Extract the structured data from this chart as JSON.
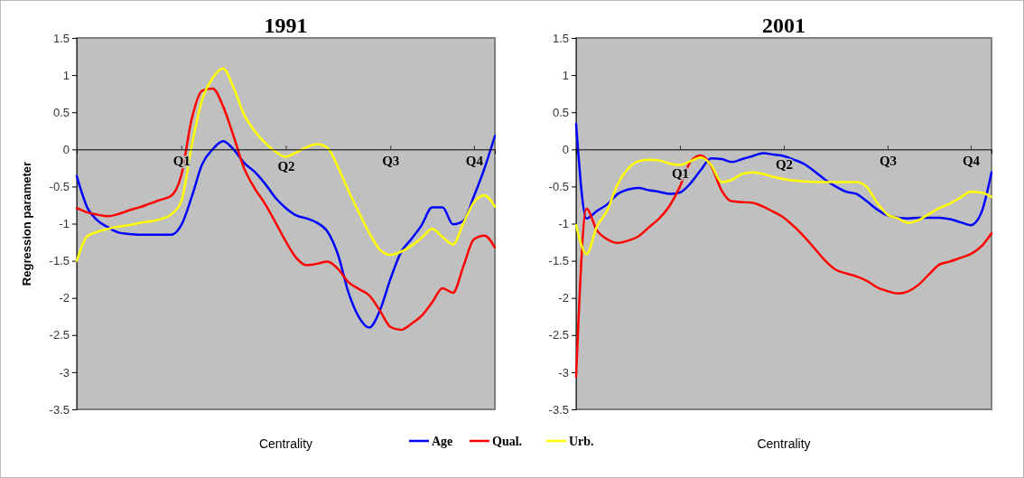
{
  "chart_data": [
    {
      "type": "line",
      "title": "1991",
      "xlabel": "Centrality",
      "ylabel": "Regression parameter",
      "categories": [
        null,
        null,
        null,
        null,
        null,
        null,
        null,
        null,
        null,
        null,
        "Q1",
        null,
        null,
        null,
        null,
        null,
        null,
        null,
        null,
        null,
        "Q2",
        null,
        null,
        null,
        null,
        null,
        null,
        null,
        null,
        null,
        "Q3",
        null,
        null,
        null,
        null,
        null,
        null,
        null,
        "Q4",
        null,
        null
      ],
      "ylim": [
        -3.5,
        1.5
      ],
      "yticks": [
        -3.5,
        -3,
        -2.5,
        -2,
        -1.5,
        -1,
        -0.5,
        0,
        0.5,
        1,
        1.5
      ],
      "legend": "bottom",
      "grid": false,
      "marker": "none",
      "line_style": "solid",
      "series": [
        {
          "name": "Age",
          "color": "#0000ff",
          "values": [
            -0.36,
            -0.78,
            -0.96,
            -1.05,
            -1.12,
            -1.14,
            -1.15,
            -1.15,
            -1.15,
            -1.15,
            -1.02,
            -0.64,
            -0.2,
            0,
            0.11,
            0,
            -0.18,
            -0.3,
            -0.46,
            -0.65,
            -0.79,
            -0.89,
            -0.93,
            -0.99,
            -1.11,
            -1.42,
            -1.93,
            -2.26,
            -2.4,
            -2.17,
            -1.75,
            -1.39,
            -1.21,
            -1.02,
            -0.78,
            -0.78,
            -1.01,
            -0.96,
            -0.63,
            -0.26,
            0.18
          ]
        },
        {
          "name": "Qual.",
          "color": "#ff0000",
          "values": [
            -0.79,
            -0.85,
            -0.88,
            -0.9,
            -0.87,
            -0.82,
            -0.78,
            -0.73,
            -0.68,
            -0.63,
            -0.35,
            0.41,
            0.79,
            0.82,
            0.58,
            0.18,
            -0.25,
            -0.52,
            -0.73,
            -0.98,
            -1.24,
            -1.46,
            -1.56,
            -1.54,
            -1.51,
            -1.61,
            -1.79,
            -1.88,
            -1.97,
            -2.17,
            -2.39,
            -2.43,
            -2.35,
            -2.24,
            -2.06,
            -1.87,
            -1.93,
            -1.57,
            -1.21,
            -1.16,
            -1.32
          ]
        },
        {
          "name": "Urb.",
          "color": "#ffff00",
          "values": [
            -1.5,
            -1.17,
            -1.11,
            -1.07,
            -1.04,
            -1.02,
            -0.99,
            -0.97,
            -0.94,
            -0.88,
            -0.7,
            0.05,
            0.67,
            0.96,
            1.09,
            0.83,
            0.47,
            0.25,
            0.09,
            -0.03,
            -0.1,
            -0.04,
            0.03,
            0.07,
            0.02,
            -0.24,
            -0.56,
            -0.85,
            -1.13,
            -1.35,
            -1.42,
            -1.38,
            -1.3,
            -1.19,
            -1.07,
            -1.18,
            -1.28,
            -0.99,
            -0.71,
            -0.62,
            -0.77
          ]
        }
      ]
    },
    {
      "type": "line",
      "title": "2001",
      "xlabel": "Centrality",
      "categories": [
        null,
        null,
        null,
        null,
        null,
        null,
        null,
        null,
        null,
        null,
        "Q1",
        null,
        null,
        null,
        null,
        null,
        null,
        null,
        null,
        null,
        "Q2",
        null,
        null,
        null,
        null,
        null,
        null,
        null,
        null,
        null,
        "Q3",
        null,
        null,
        null,
        null,
        null,
        null,
        null,
        "Q4",
        null,
        null
      ],
      "ylim": [
        -3.5,
        1.5
      ],
      "yticks": [
        -3.5,
        -3,
        -2.5,
        -2,
        -1.5,
        -1,
        -0.5,
        0,
        0.5,
        1,
        1.5
      ],
      "grid": false,
      "marker": "none",
      "line_style": "solid",
      "series": [
        {
          "color": "#0000ff",
          "values": [
            0.34,
            -0.93,
            -0.83,
            -0.74,
            -0.6,
            -0.54,
            -0.52,
            -0.55,
            -0.57,
            -0.6,
            -0.58,
            -0.46,
            -0.28,
            -0.12,
            -0.13,
            -0.17,
            -0.13,
            -0.09,
            -0.05,
            -0.07,
            -0.09,
            -0.14,
            -0.2,
            -0.3,
            -0.41,
            -0.5,
            -0.57,
            -0.6,
            -0.7,
            -0.81,
            -0.89,
            -0.92,
            -0.93,
            -0.92,
            -0.92,
            -0.92,
            -0.94,
            -0.98,
            -1.02,
            -0.86,
            -0.31
          ]
        },
        {
          "color": "#ff0000",
          "values": [
            -3.06,
            -0.8,
            -1.09,
            -1.21,
            -1.26,
            -1.23,
            -1.17,
            -1.05,
            -0.93,
            -0.76,
            -0.5,
            -0.17,
            -0.08,
            -0.22,
            -0.55,
            -0.7,
            -0.71,
            -0.72,
            -0.77,
            -0.84,
            -0.92,
            -1.04,
            -1.18,
            -1.34,
            -1.5,
            -1.62,
            -1.67,
            -1.71,
            -1.77,
            -1.86,
            -1.91,
            -1.94,
            -1.91,
            -1.82,
            -1.68,
            -1.55,
            -1.51,
            -1.46,
            -1.41,
            -1.31,
            -1.13
          ]
        },
        {
          "color": "#ffff00",
          "values": [
            -1.02,
            -1.41,
            -1.04,
            -0.82,
            -0.47,
            -0.26,
            -0.16,
            -0.14,
            -0.15,
            -0.19,
            -0.21,
            -0.16,
            -0.11,
            -0.21,
            -0.44,
            -0.41,
            -0.33,
            -0.31,
            -0.33,
            -0.37,
            -0.4,
            -0.42,
            -0.43,
            -0.44,
            -0.44,
            -0.44,
            -0.44,
            -0.44,
            -0.51,
            -0.72,
            -0.88,
            -0.93,
            -0.99,
            -0.95,
            -0.87,
            -0.79,
            -0.73,
            -0.65,
            -0.57,
            -0.58,
            -0.64
          ]
        }
      ]
    }
  ]
}
